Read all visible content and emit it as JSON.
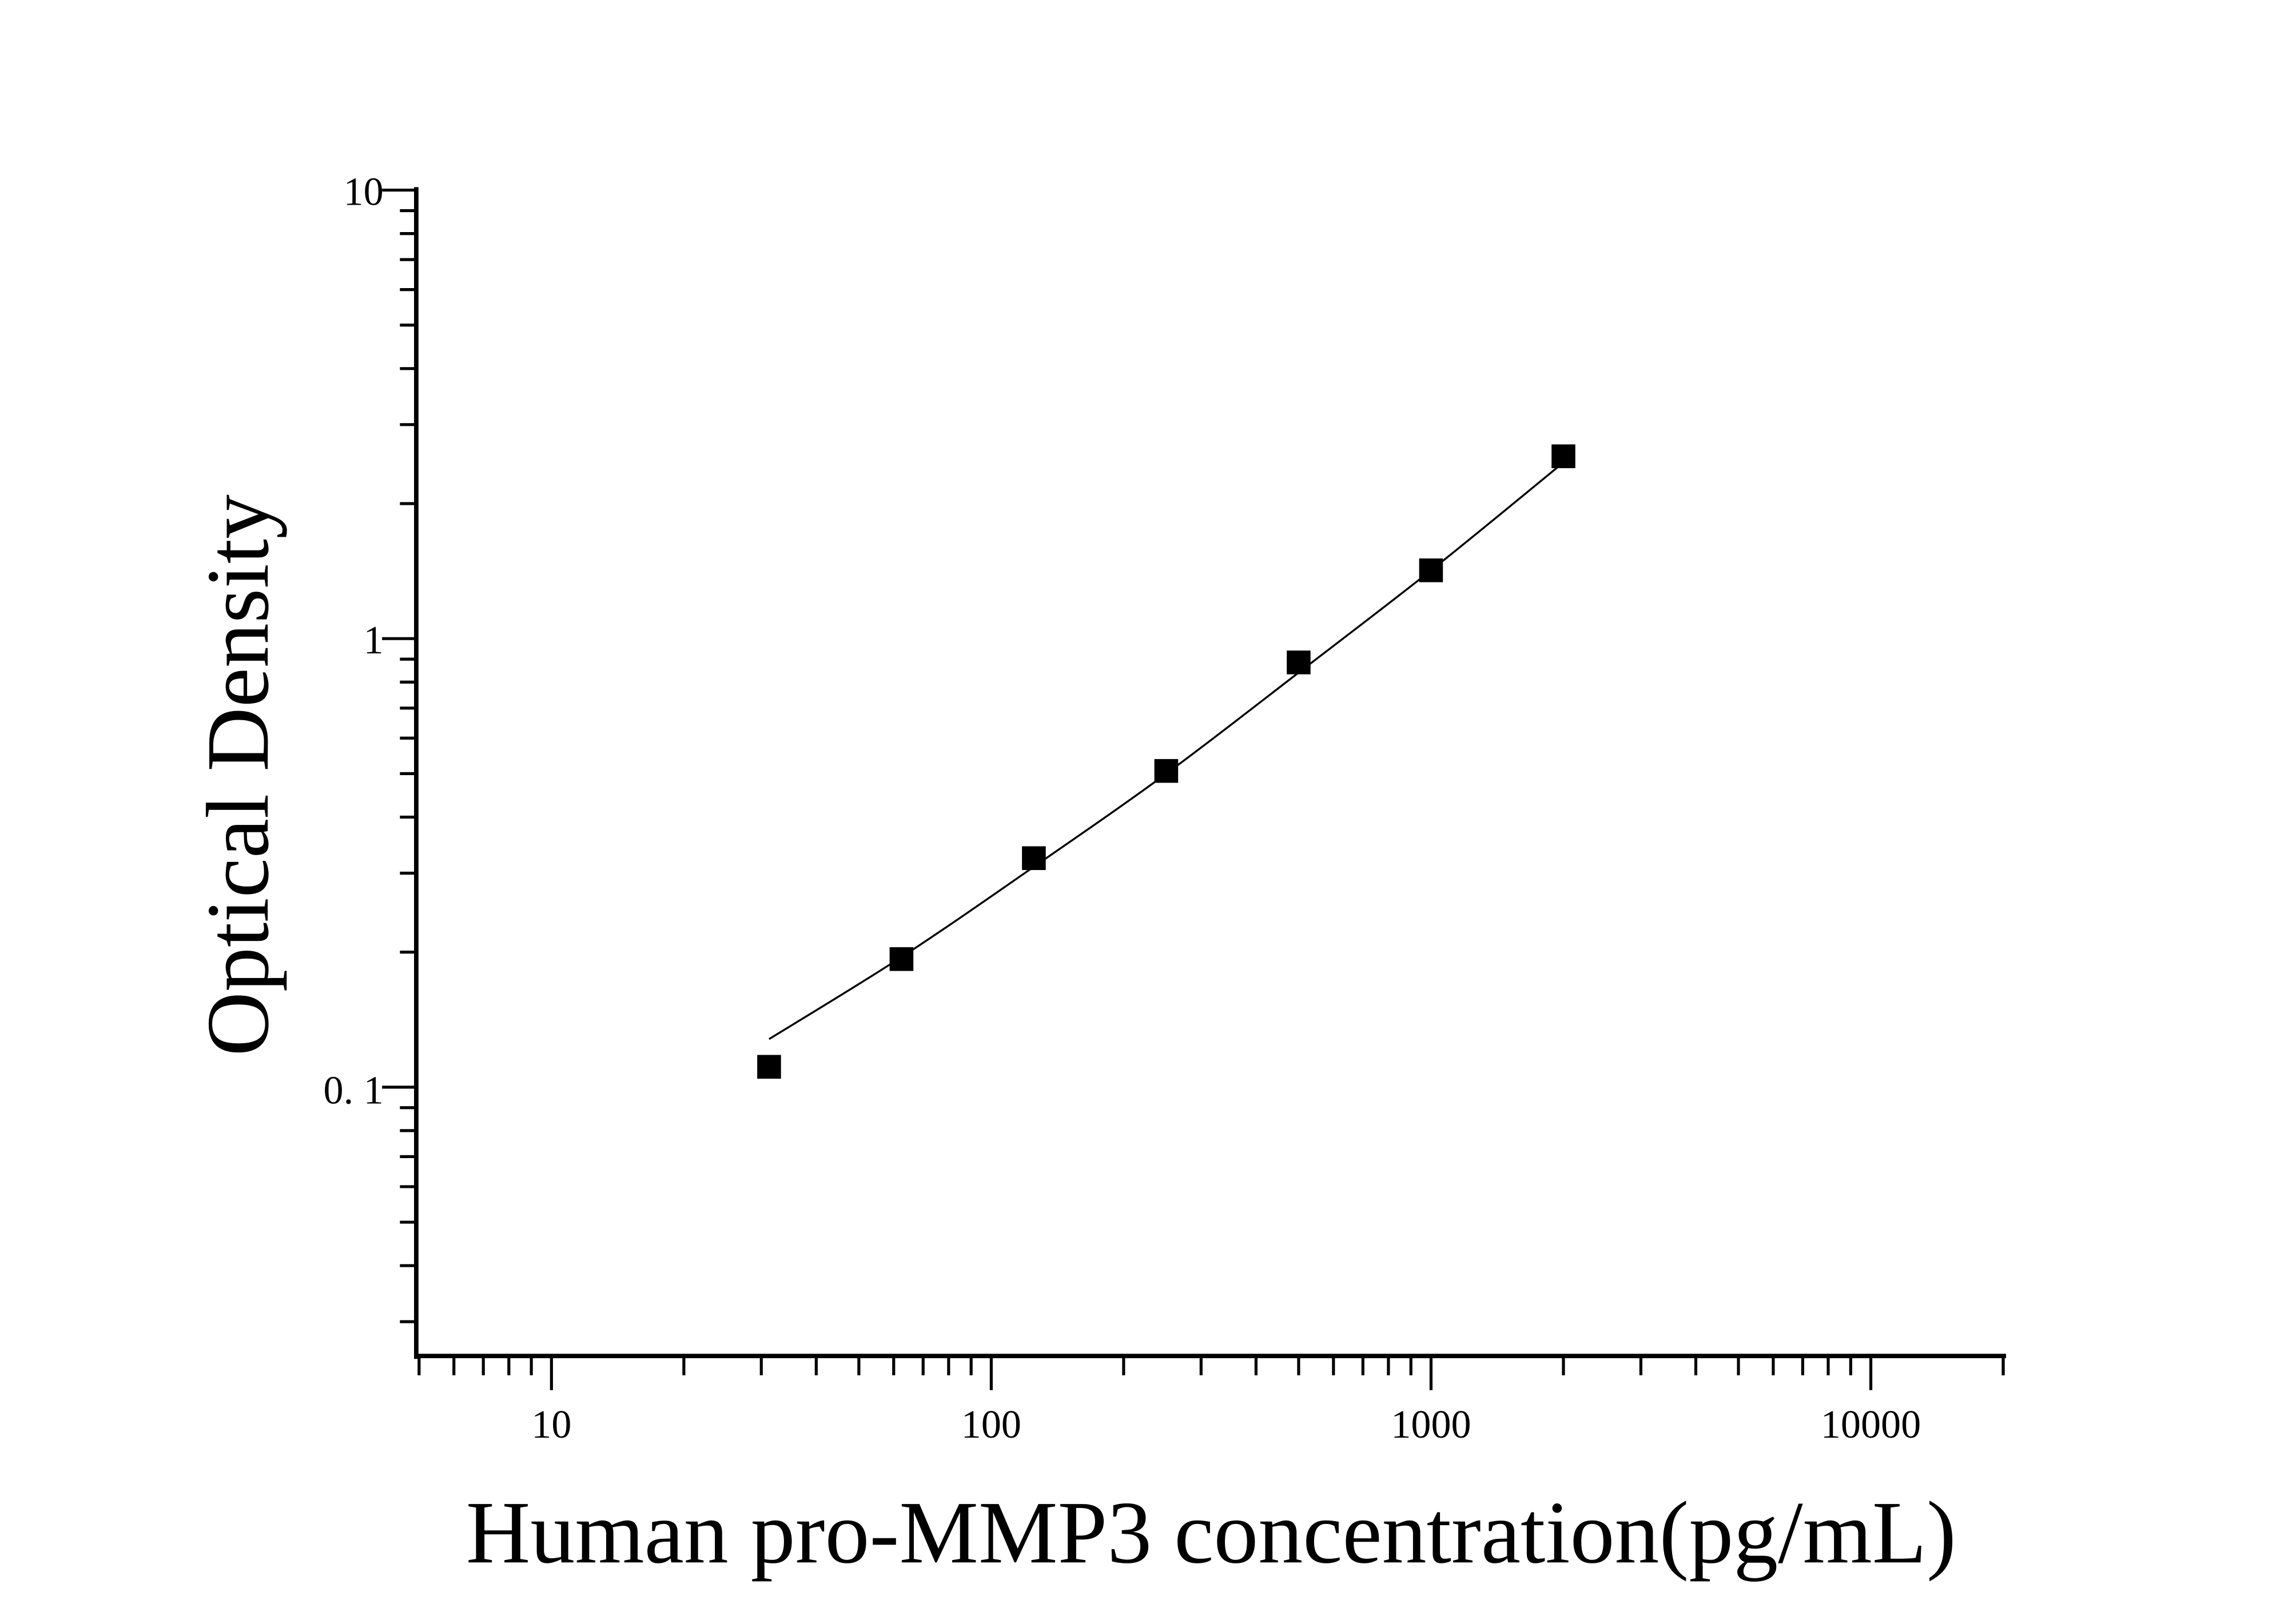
{
  "chart_data": {
    "type": "scatter",
    "title": "",
    "xlabel": "Human pro-MMP3 concentration(pg/mL)",
    "ylabel": "Optical Density",
    "x_scale": "log",
    "y_scale": "log",
    "xlim": [
      5,
      20000
    ],
    "ylim": [
      0.025,
      10
    ],
    "x_ticks": [
      10,
      100,
      1000,
      10000
    ],
    "x_tick_labels": [
      "10",
      "100",
      "1000",
      "10000"
    ],
    "y_ticks": [
      0.1,
      1,
      10
    ],
    "y_tick_labels": [
      "0. 1",
      "1",
      "10"
    ],
    "grid": false,
    "legend": "none",
    "marker": "square",
    "color": "#000000",
    "series": [
      {
        "x": [
          31.25,
          62.5,
          125,
          250,
          500,
          1000,
          2000
        ],
        "y": [
          0.111,
          0.193,
          0.324,
          0.507,
          0.885,
          1.42,
          2.55
        ]
      }
    ],
    "fit_curve": {
      "x": [
        31.25,
        62.5,
        125,
        250,
        500,
        1000,
        2000
      ],
      "y": [
        0.128,
        0.195,
        0.31,
        0.5,
        0.84,
        1.42,
        2.47
      ]
    }
  }
}
